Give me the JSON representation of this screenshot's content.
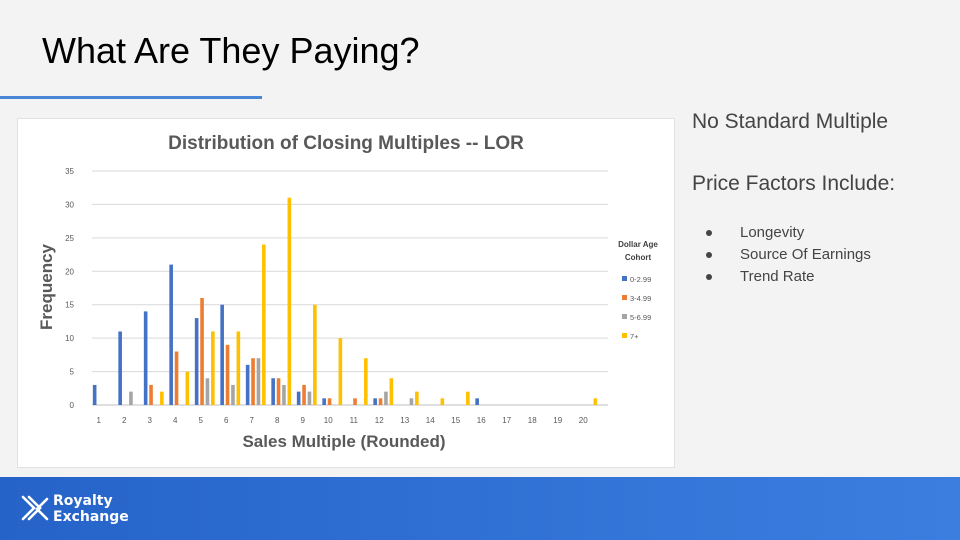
{
  "slide": {
    "title": "What Are They Paying?",
    "side_line1": "No Standard Multiple",
    "side_line2": "Price Factors Include:",
    "bullets": [
      "Longevity",
      "Source Of Earnings",
      "Trend Rate"
    ]
  },
  "logo": {
    "line1": "Royalty",
    "line2": "Exchange",
    "icon": "royalty-exchange-logo-mark"
  },
  "colors": {
    "accent": "#4a86d8",
    "footer": "#2f72d6",
    "series": [
      "#4472c4",
      "#ed7d31",
      "#a5a5a5",
      "#ffc000"
    ]
  },
  "chart_data": {
    "type": "bar",
    "title": "Distribution of Closing Multiples -- LOR",
    "xlabel": "Sales Multiple (Rounded)",
    "ylabel": "Frequency",
    "ylim": [
      0,
      35
    ],
    "yticks": [
      0,
      5,
      10,
      15,
      20,
      25,
      30,
      35
    ],
    "grid": true,
    "legend_title": "Dollar Age Cohort",
    "legend_position": "right",
    "categories": [
      "1",
      "2",
      "3",
      "4",
      "5",
      "6",
      "7",
      "8",
      "9",
      "10",
      "11",
      "12",
      "13",
      "14",
      "15",
      "16",
      "17",
      "18",
      "19",
      "20"
    ],
    "series": [
      {
        "name": "0-2.99",
        "color": "#4472c4",
        "values": [
          3,
          11,
          14,
          21,
          13,
          15,
          6,
          4,
          2,
          1,
          0,
          1,
          0,
          0,
          0,
          1,
          0,
          0,
          0,
          0
        ]
      },
      {
        "name": "3-4.99",
        "color": "#ed7d31",
        "values": [
          0,
          0,
          3,
          8,
          16,
          9,
          7,
          4,
          3,
          1,
          1,
          1,
          0,
          0,
          0,
          0,
          0,
          0,
          0,
          0
        ]
      },
      {
        "name": "5-6.99",
        "color": "#a5a5a5",
        "values": [
          0,
          2,
          0,
          0,
          4,
          3,
          7,
          3,
          2,
          0,
          0,
          2,
          1,
          0,
          0,
          0,
          0,
          0,
          0,
          0
        ]
      },
      {
        "name": "7+",
        "color": "#ffc000",
        "values": [
          0,
          0,
          2,
          5,
          11,
          11,
          24,
          31,
          15,
          10,
          7,
          4,
          2,
          1,
          2,
          0,
          0,
          0,
          0,
          1
        ]
      }
    ]
  }
}
